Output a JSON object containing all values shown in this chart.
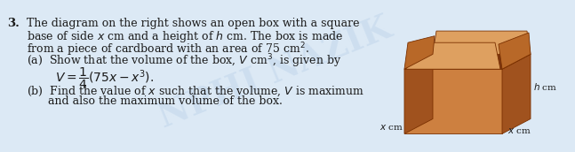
{
  "background_color": "#dce9f5",
  "text_color": "#1a1a1a",
  "font_family": "DejaVu Serif",
  "font_size": 9.0,
  "q_number": "3.",
  "text_lines": [
    "The diagram on the right shows an open box with a square",
    "base of side $x$ cm and a height of $h$ cm. The box is made",
    "from a piece of cardboard with an area of 75 cm\\u00b2.",
    "(a)  Show that the volume of the box, $V$ cm\\u00b3, is given by",
    "(b)  Find the value of $x$ such that the volume, $V$ is maximum",
    "      and also the maximum volume of the box."
  ],
  "formula_text": "$V = \\\\dfrac{1}{4}(75x - x^3).$",
  "label_h": "$h$ cm",
  "label_x1": "$x$ cm",
  "label_x2": "$x$ cm",
  "box_front_color": "#cd8040",
  "box_side_color": "#a0521e",
  "box_flap_top_color": "#dea060",
  "box_flap_side_color": "#b86828",
  "box_inner_color": "#7a3510",
  "box_edge_color": "#7a3000",
  "watermark_color": "#b8cfe8",
  "watermark_text": "NPHI NAZIK",
  "watermark_alpha": 0.4
}
